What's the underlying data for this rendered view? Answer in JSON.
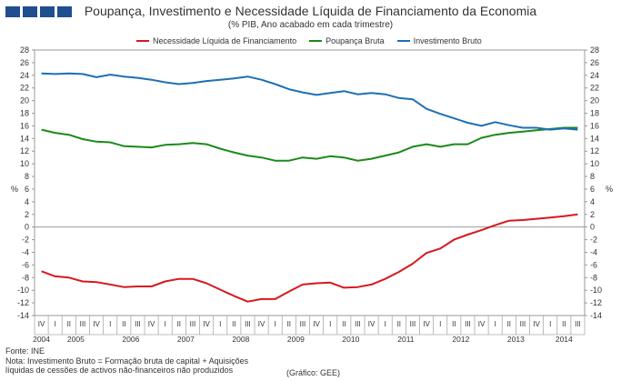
{
  "header": {
    "title": "Poupança, Investimento e Necessidade Líquida de Financiamento da Economia",
    "subtitle": "(% PIB, Ano acabado em cada trimestre)"
  },
  "footer": {
    "source": "Fonte: INE",
    "note1": "Nota: Investimento Bruto = Formação bruta de capital + Aquisições",
    "note2": "líquidas de cessões de activos não-financeiros não produzidos",
    "credit": "(Gráfico: GEE)"
  },
  "chart_data": {
    "type": "line",
    "ylabel_left": "%",
    "ylabel_right": "%",
    "ylim": [
      -14,
      28
    ],
    "yticks": [
      -14,
      -12,
      -10,
      -8,
      -6,
      -4,
      -2,
      0,
      2,
      4,
      6,
      8,
      10,
      12,
      14,
      16,
      18,
      20,
      22,
      24,
      26,
      28
    ],
    "quarter_labels": [
      "IV",
      "I",
      "II",
      "III",
      "IV",
      "I",
      "II",
      "III",
      "IV",
      "I",
      "II",
      "III",
      "IV",
      "I",
      "II",
      "III",
      "IV",
      "I",
      "II",
      "III",
      "IV",
      "I",
      "II",
      "III",
      "IV",
      "I",
      "II",
      "III",
      "IV",
      "I",
      "II",
      "III",
      "IV",
      "I",
      "II",
      "III",
      "IV",
      "I",
      "II",
      "III"
    ],
    "year_labels": [
      {
        "label": "2004",
        "index": 0
      },
      {
        "label": "2005",
        "index": 2.5
      },
      {
        "label": "2006",
        "index": 6.5
      },
      {
        "label": "2007",
        "index": 10.5
      },
      {
        "label": "2008",
        "index": 14.5
      },
      {
        "label": "2009",
        "index": 18.5
      },
      {
        "label": "2010",
        "index": 22.5
      },
      {
        "label": "2011",
        "index": 26.5
      },
      {
        "label": "2012",
        "index": 30.5
      },
      {
        "label": "2013",
        "index": 34.5
      },
      {
        "label": "2014",
        "index": 38
      }
    ],
    "series": [
      {
        "name": "Necessidade Líquida de Financiamento",
        "color": "#d7191c",
        "values": [
          -7.0,
          -7.8,
          -8.0,
          -8.6,
          -8.7,
          -9.1,
          -9.5,
          -9.4,
          -9.4,
          -8.6,
          -8.2,
          -8.2,
          -8.9,
          -9.9,
          -10.9,
          -11.8,
          -11.4,
          -11.4,
          -10.2,
          -9.1,
          -8.9,
          -8.8,
          -9.6,
          -9.5,
          -9.1,
          -8.2,
          -7.1,
          -5.8,
          -4.1,
          -3.4,
          -2.0,
          -1.2,
          -0.5,
          0.3,
          1.0,
          1.1,
          1.3,
          1.5,
          1.7,
          2.0
        ]
      },
      {
        "name": "Poupança Bruta",
        "color": "#1a8a1a",
        "values": [
          15.4,
          14.9,
          14.6,
          13.9,
          13.5,
          13.4,
          12.8,
          12.7,
          12.6,
          13.0,
          13.1,
          13.3,
          13.1,
          12.4,
          11.8,
          11.3,
          11.0,
          10.5,
          10.5,
          11.0,
          10.8,
          11.2,
          11.0,
          10.5,
          10.8,
          11.3,
          11.8,
          12.7,
          13.1,
          12.7,
          13.1,
          13.1,
          14.1,
          14.6,
          14.9,
          15.1,
          15.3,
          15.5,
          15.7,
          15.7
        ]
      },
      {
        "name": "Investimento Bruto",
        "color": "#1f6fb4",
        "values": [
          24.3,
          24.2,
          24.3,
          24.2,
          23.7,
          24.1,
          23.8,
          23.6,
          23.3,
          22.9,
          22.6,
          22.8,
          23.1,
          23.3,
          23.5,
          23.8,
          23.3,
          22.6,
          21.8,
          21.3,
          20.9,
          21.2,
          21.5,
          21.0,
          21.2,
          21.0,
          20.4,
          20.2,
          18.7,
          17.9,
          17.2,
          16.5,
          16.0,
          16.6,
          16.1,
          15.7,
          15.7,
          15.4,
          15.6,
          15.4
        ]
      }
    ]
  }
}
